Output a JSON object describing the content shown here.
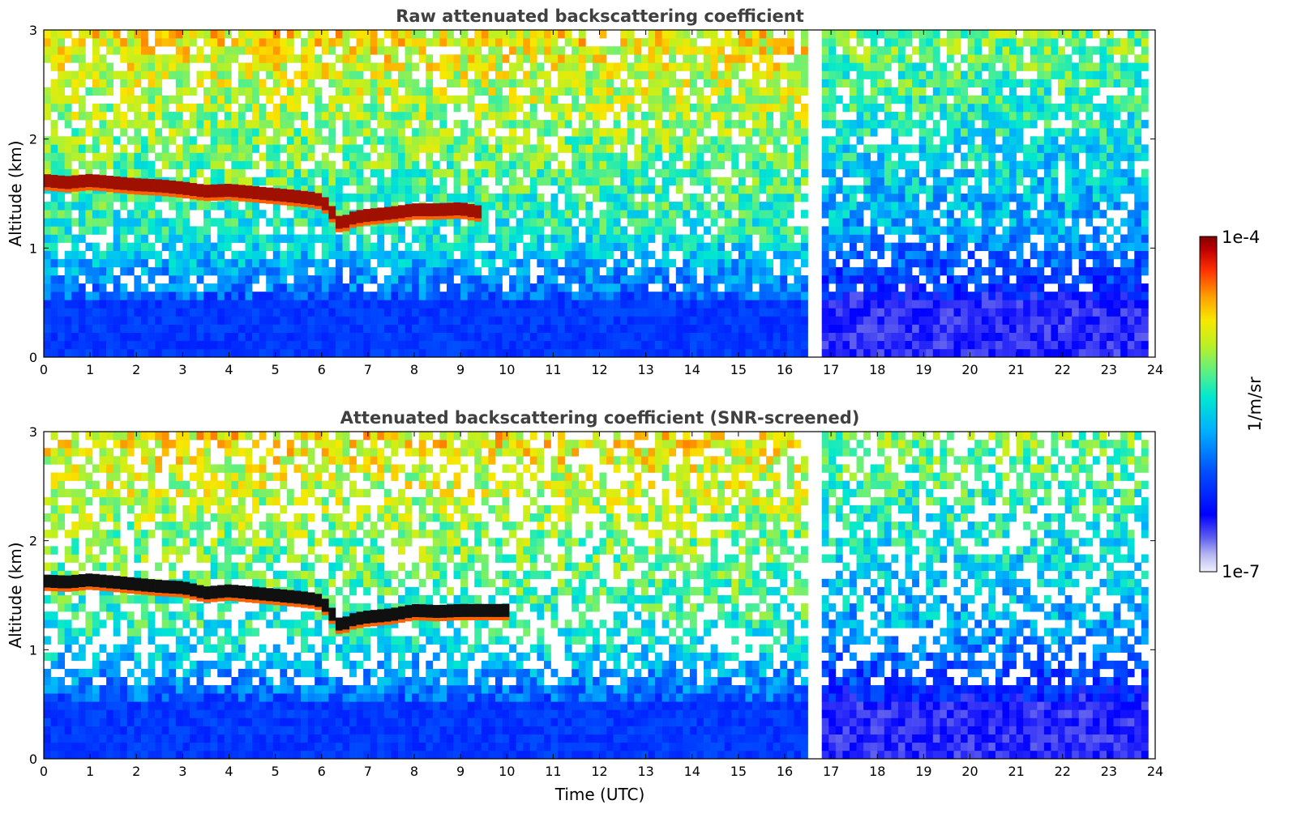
{
  "chart_data": [
    {
      "type": "heatmap",
      "title": "Raw attenuated backscattering coefficient",
      "xlabel": "",
      "ylabel": "Altitude (km)",
      "xlim": [
        0,
        24
      ],
      "ylim": [
        0,
        3
      ],
      "x_ticks": [
        "0",
        "1",
        "2",
        "3",
        "4",
        "5",
        "6",
        "7",
        "8",
        "9",
        "10",
        "11",
        "12",
        "13",
        "14",
        "15",
        "16",
        "17",
        "18",
        "19",
        "20",
        "21",
        "22",
        "23",
        "24"
      ],
      "y_ticks": [
        "0",
        "1",
        "2",
        "3"
      ],
      "data_gap_hours": [
        16.55,
        16.85
      ],
      "data_end_hour": 23.82,
      "cloud_layer": {
        "hours": [
          0,
          0.5,
          1,
          1.5,
          2,
          2.5,
          3,
          3.5,
          4,
          4.5,
          5,
          5.5,
          5.9,
          6.1,
          6.4,
          6.7,
          7.0,
          7.5,
          8,
          8.5,
          9,
          9.4
        ],
        "altitude_km": [
          1.62,
          1.6,
          1.62,
          1.6,
          1.58,
          1.57,
          1.55,
          1.52,
          1.53,
          1.51,
          1.49,
          1.47,
          1.45,
          1.4,
          1.22,
          1.28,
          1.3,
          1.32,
          1.35,
          1.35,
          1.36,
          1.33
        ]
      },
      "colorbar_log10_range": [
        -7,
        -4
      ]
    },
    {
      "type": "heatmap",
      "title": "Attenuated backscattering coefficient (SNR-screened)",
      "xlabel": "Time (UTC)",
      "ylabel": "Altitude (km)",
      "xlim": [
        0,
        24
      ],
      "ylim": [
        0,
        3
      ],
      "x_ticks": [
        "0",
        "1",
        "2",
        "3",
        "4",
        "5",
        "6",
        "7",
        "8",
        "9",
        "10",
        "11",
        "12",
        "13",
        "14",
        "15",
        "16",
        "17",
        "18",
        "19",
        "20",
        "21",
        "22",
        "23",
        "24"
      ],
      "y_ticks": [
        "0",
        "1",
        "2",
        "3"
      ],
      "data_gap_hours": [
        16.55,
        16.85
      ],
      "data_end_hour": 23.82,
      "cloud_layer": {
        "hours": [
          0,
          0.5,
          1,
          1.5,
          2,
          2.5,
          3,
          3.5,
          4,
          4.5,
          5,
          5.5,
          5.9,
          6.1,
          6.4,
          6.7,
          7.0,
          7.5,
          8,
          8.5,
          9,
          9.4,
          10
        ],
        "altitude_km": [
          1.63,
          1.62,
          1.64,
          1.62,
          1.6,
          1.58,
          1.57,
          1.52,
          1.54,
          1.52,
          1.5,
          1.48,
          1.46,
          1.4,
          1.22,
          1.28,
          1.3,
          1.32,
          1.36,
          1.35,
          1.36,
          1.36,
          1.36
        ]
      },
      "colorbar_log10_range": [
        -7,
        -4
      ]
    }
  ],
  "colorbar": {
    "max_label": "1e-4",
    "min_label": "1e-7",
    "unit_label": "1/m/sr",
    "colors": [
      "#f0f0ff",
      "#c8c8f0",
      "#9090e8",
      "#0000ff",
      "#0030ff",
      "#0070ff",
      "#00b0ff",
      "#00e0e0",
      "#40f0a0",
      "#a0f040",
      "#f0f000",
      "#ffb000",
      "#ff5000",
      "#e00000",
      "#800000"
    ]
  }
}
